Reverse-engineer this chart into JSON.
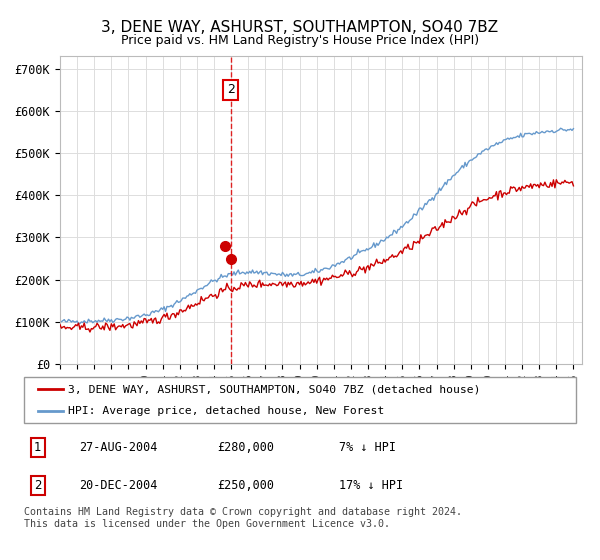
{
  "title": "3, DENE WAY, ASHURST, SOUTHAMPTON, SO40 7BZ",
  "subtitle": "Price paid vs. HM Land Registry's House Price Index (HPI)",
  "title_fontsize": 11,
  "subtitle_fontsize": 9,
  "ylabel_ticks": [
    "£0",
    "£100K",
    "£200K",
    "£300K",
    "£400K",
    "£500K",
    "£600K",
    "£700K"
  ],
  "ytick_values": [
    0,
    100000,
    200000,
    300000,
    400000,
    500000,
    600000,
    700000
  ],
  "ylim": [
    0,
    730000
  ],
  "xlim_start": 1995,
  "xlim_end": 2025.5,
  "vline_x": 2004.97,
  "vline_color": "#dd0000",
  "sale1_x": 2004.65,
  "sale1_y": 280000,
  "sale2_x": 2004.97,
  "sale2_y": 250000,
  "annotation_label": "2",
  "legend_line1": "3, DENE WAY, ASHURST, SOUTHAMPTON, SO40 7BZ (detached house)",
  "legend_line2": "HPI: Average price, detached house, New Forest",
  "table_rows": [
    {
      "num": "1",
      "date": "27-AUG-2004",
      "price": "£280,000",
      "hpi": "7% ↓ HPI"
    },
    {
      "num": "2",
      "date": "20-DEC-2004",
      "price": "£250,000",
      "hpi": "17% ↓ HPI"
    }
  ],
  "footer": "Contains HM Land Registry data © Crown copyright and database right 2024.\nThis data is licensed under the Open Government Licence v3.0.",
  "property_color": "#cc0000",
  "hpi_color": "#6699cc",
  "background_color": "#ffffff",
  "grid_color": "#dddddd"
}
